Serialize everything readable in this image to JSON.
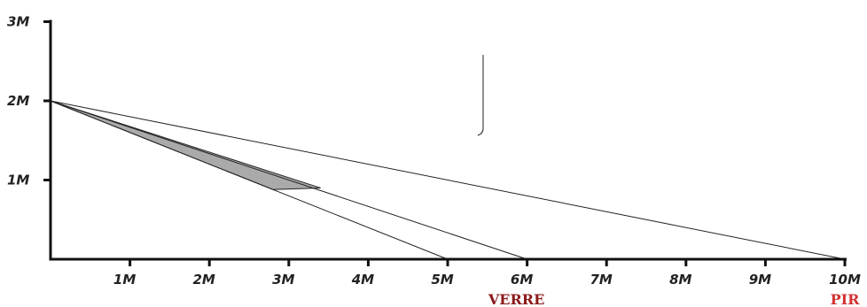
{
  "colors": {
    "axis": "#111111",
    "ray": "#222222",
    "shade_fill": "#aaaaaa",
    "verre_label": "#8b1a1a",
    "pir_label": "#d43030"
  },
  "y_ticks": [
    {
      "value": 1,
      "label": "1M"
    },
    {
      "value": 2,
      "label": "2M"
    },
    {
      "value": 3,
      "label": "3M"
    }
  ],
  "x_ticks": [
    {
      "value": 1,
      "label": "1M"
    },
    {
      "value": 2,
      "label": "2M"
    },
    {
      "value": 3,
      "label": "3M"
    },
    {
      "value": 4,
      "label": "4M"
    },
    {
      "value": 5,
      "label": "5M"
    },
    {
      "value": 6,
      "label": "6M"
    },
    {
      "value": 7,
      "label": "7M"
    },
    {
      "value": 8,
      "label": "8M"
    },
    {
      "value": 9,
      "label": "9M"
    },
    {
      "value": 10,
      "label": "10M"
    }
  ],
  "origin_point": {
    "x": 0,
    "y": 2
  },
  "rays": [
    {
      "name": "ray-to-5m",
      "end_x": 5
    },
    {
      "name": "ray-to-6m",
      "end_x": 6
    },
    {
      "name": "ray-to-10m",
      "end_x": 10
    }
  ],
  "shaded_region": [
    [
      0,
      2
    ],
    [
      3.4,
      0.9
    ],
    [
      2.8,
      0.88
    ]
  ],
  "markers": {
    "verre": {
      "label": "VERRE",
      "x": 6
    },
    "pir": {
      "label": "PIR",
      "x": 10
    }
  }
}
